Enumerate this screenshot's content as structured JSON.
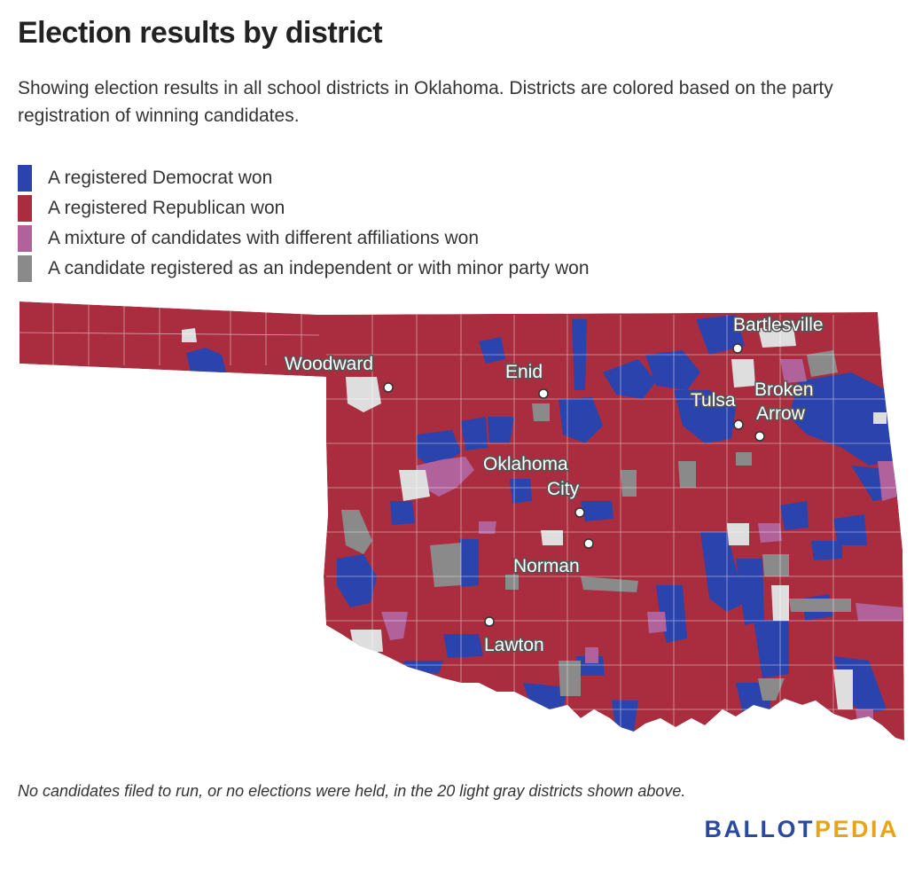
{
  "title": "Election results by district",
  "subtitle": "Showing election results in all school districts in Oklahoma. Districts are colored based on the party registration of winning candidates.",
  "legend": [
    {
      "label": "A registered Democrat won",
      "color": "#2b44ad"
    },
    {
      "label": "A registered Republican won",
      "color": "#a92d3e"
    },
    {
      "label": "A mixture of candidates with different affiliations won",
      "color": "#b2629b"
    },
    {
      "label": "A candidate registered as an independent or with minor party won",
      "color": "#8a8a8a"
    }
  ],
  "no_data_color": "#dedede",
  "cities": [
    {
      "name": "Bartlesville",
      "label_lines": [
        "Bartlesville"
      ]
    },
    {
      "name": "Woodward",
      "label_lines": [
        "Woodward"
      ]
    },
    {
      "name": "Enid",
      "label_lines": [
        "Enid"
      ]
    },
    {
      "name": "Tulsa",
      "label_lines": [
        "Tulsa"
      ]
    },
    {
      "name": "Broken Arrow",
      "label_lines": [
        "Broken",
        "Arrow"
      ]
    },
    {
      "name": "Oklahoma City",
      "label_lines": [
        "Oklahoma",
        "City"
      ]
    },
    {
      "name": "Norman",
      "label_lines": [
        "Norman"
      ]
    },
    {
      "name": "Lawton",
      "label_lines": [
        "Lawton"
      ]
    }
  ],
  "footnote": "No candidates filed to run, or no elections were held, in the 20 light gray districts shown above.",
  "brand": {
    "part1": "BALLOT",
    "part2": "PEDIA"
  }
}
